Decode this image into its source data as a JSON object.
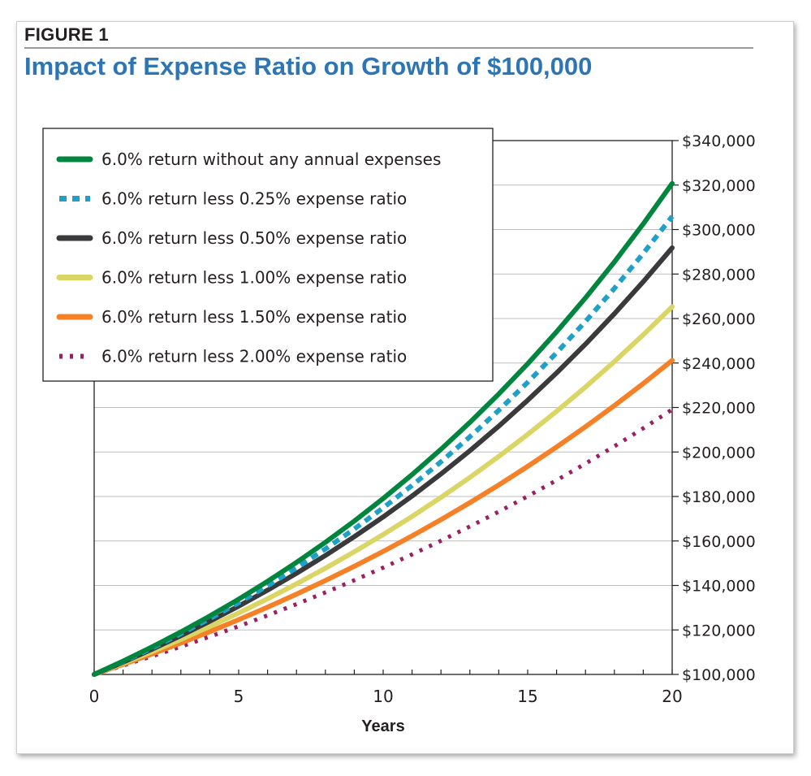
{
  "figure": {
    "label": "FIGURE 1",
    "title": "Impact of Expense Ratio on Growth of $100,000",
    "title_color": "#2e75b6"
  },
  "chart_data": {
    "type": "line",
    "title": "Impact of Expense Ratio on Growth of $100,000",
    "xlabel": "Years",
    "ylabel": "",
    "xlim": [
      0,
      20
    ],
    "ylim": [
      100000,
      340000
    ],
    "x_ticks": [
      0,
      5,
      10,
      15,
      20
    ],
    "y_ticks": [
      100000,
      120000,
      140000,
      160000,
      180000,
      200000,
      220000,
      240000,
      260000,
      280000,
      300000,
      320000,
      340000
    ],
    "y_tick_labels": [
      "$100,000",
      "$120,000",
      "$140,000",
      "$160,000",
      "$180,000",
      "$200,000",
      "$220,000",
      "$240,000",
      "$260,000",
      "$280,000",
      "$300,000",
      "$320,000",
      "$340,000"
    ],
    "y_axis_side": "right",
    "grid": "horizontal",
    "legend_position": "top-left",
    "x": [
      0,
      1,
      2,
      3,
      4,
      5,
      6,
      7,
      8,
      9,
      10,
      11,
      12,
      13,
      14,
      15,
      16,
      17,
      18,
      19,
      20
    ],
    "series": [
      {
        "name": "6.0% return without any annual expenses",
        "color": "#00853f",
        "style": "solid",
        "values": [
          100000,
          106000,
          112360,
          119102,
          126248,
          133823,
          141852,
          150363,
          159385,
          168948,
          179085,
          189830,
          201220,
          213293,
          226090,
          239656,
          254035,
          269277,
          285434,
          302560,
          320714
        ]
      },
      {
        "name": "6.0% return less 0.25% expense ratio",
        "color": "#1ea0c8",
        "style": "dashed",
        "values": [
          100000,
          105750,
          111831,
          118261,
          125061,
          132252,
          139856,
          147898,
          156402,
          165395,
          174905,
          184962,
          195598,
          206845,
          218738,
          231316,
          244616,
          258682,
          273556,
          289286,
          305920
        ]
      },
      {
        "name": "6.0% return less 0.50% expense ratio",
        "color": "#3a3a3c",
        "style": "solid",
        "values": [
          100000,
          105500,
          111303,
          117424,
          123882,
          130696,
          137884,
          145468,
          153469,
          161909,
          170814,
          180209,
          190121,
          200577,
          211609,
          223248,
          235526,
          248480,
          262147,
          276565,
          291776
        ]
      },
      {
        "name": "6.0% return less 1.00% expense ratio",
        "color": "#d9d665",
        "style": "solid",
        "values": [
          100000,
          105000,
          110250,
          115763,
          121551,
          127628,
          134010,
          140710,
          147746,
          155133,
          162889,
          171034,
          179586,
          188565,
          197993,
          207893,
          218287,
          229202,
          240662,
          252695,
          265330
        ]
      },
      {
        "name": "6.0% return less 1.50% expense ratio",
        "color": "#f58025",
        "style": "solid",
        "values": [
          100000,
          104500,
          109203,
          114117,
          119252,
          124618,
          130226,
          136086,
          142210,
          148610,
          155297,
          162285,
          169588,
          177220,
          185195,
          193529,
          202237,
          211338,
          220848,
          230786,
          241171
        ]
      },
      {
        "name": "6.0% return less 2.00% expense ratio",
        "color": "#9b1f63",
        "style": "dotted",
        "values": [
          100000,
          104000,
          108160,
          112486,
          116986,
          121665,
          126532,
          131593,
          136857,
          142331,
          148024,
          153945,
          160103,
          166507,
          173168,
          180094,
          187298,
          194790,
          202582,
          210685,
          219112
        ]
      }
    ]
  }
}
